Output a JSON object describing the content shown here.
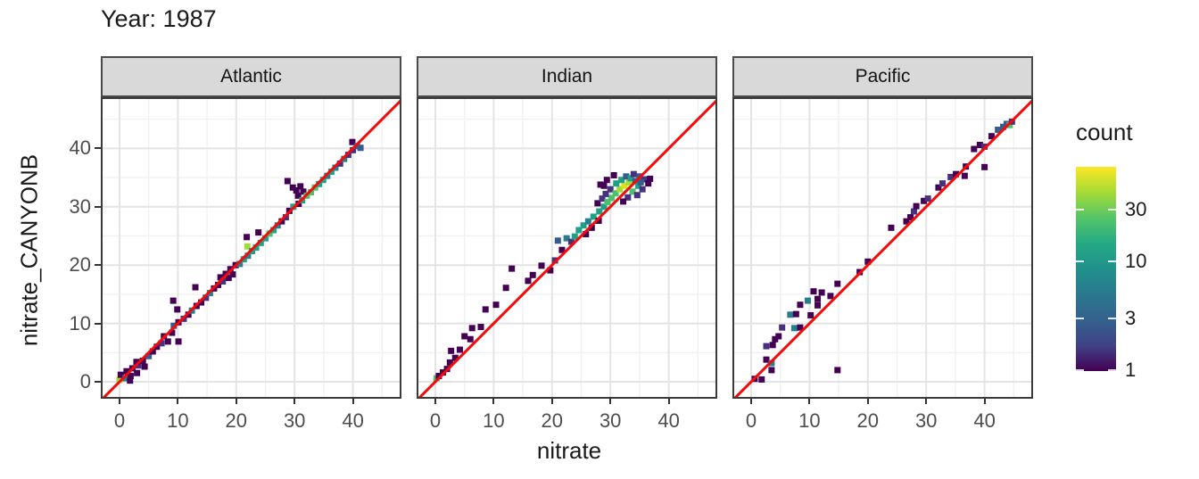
{
  "title": "Year: 1987",
  "axes": {
    "x_title": "nitrate",
    "y_title": "nitrate_CANYONB",
    "x_tick_labels": [
      "0",
      "10",
      "20",
      "30",
      "40"
    ],
    "y_tick_labels": [
      "0",
      "10",
      "20",
      "30",
      "40"
    ]
  },
  "legend": {
    "title": "count",
    "labels": [
      "30",
      "10",
      "3",
      "1"
    ],
    "label_values": [
      30,
      10,
      3,
      1
    ]
  },
  "colors": {
    "identity_line": "#F50A0A",
    "strip_bg": "#d9d9d9",
    "strip_border": "#4a4a4a",
    "panel_border": "#3a3a3a",
    "grid_major": "#e4e4e4",
    "grid_minor": "#f1f1f1",
    "tick_label": "#4d4d4d",
    "viridis_levels": {
      "c1": "#440154",
      "c2": "#46327e",
      "c3": "#365c8d",
      "c4": "#277f8e",
      "c5": "#1fa187",
      "c6": "#4ac16d",
      "c7": "#a0da39",
      "c8": "#d8e219"
    },
    "colorbar_gradient": [
      "#fde725",
      "#a5db36",
      "#54c568",
      "#24aa83",
      "#21918c",
      "#2a788e",
      "#34618d",
      "#414287",
      "#440154"
    ]
  },
  "chart_data": {
    "type": "heatmap",
    "subtype": "geom_bin2d faceted scatter of binned counts with y=x reference line",
    "title": "Year: 1987",
    "xlabel": "nitrate",
    "ylabel": "nitrate_CANYONB",
    "xlim": [
      -3.2,
      48.3
    ],
    "ylim": [
      -2.9,
      48.8
    ],
    "x_ticks": [
      0,
      10,
      20,
      30,
      40
    ],
    "y_ticks": [
      0,
      10,
      20,
      30,
      40
    ],
    "grid": {
      "major": [
        0,
        10,
        20,
        30,
        40
      ],
      "minor": [
        5,
        15,
        25,
        35,
        45
      ]
    },
    "identity_line": "y = x (red)",
    "legend_position": "right",
    "count_scale": {
      "type": "log",
      "legend_ticks": [
        1,
        3,
        10,
        30
      ],
      "max_approx": 70
    },
    "level_counts": {
      "c1": 1,
      "c2": 2,
      "c3": 3,
      "c4": 5,
      "c5": 8,
      "c6": 15,
      "c7": 30,
      "c8": 45
    },
    "facets": [
      {
        "name": "Atlantic",
        "bins": [
          [
            0,
            0.3,
            "c7"
          ],
          [
            0.2,
            1.2,
            "c1"
          ],
          [
            1,
            0.6,
            "c4"
          ],
          [
            1.2,
            1.8,
            "c1"
          ],
          [
            1.9,
            1,
            "c1"
          ],
          [
            2.2,
            2.3,
            "c1"
          ],
          [
            3,
            1.5,
            "c1"
          ],
          [
            3.2,
            2.8,
            "c2"
          ],
          [
            1.8,
            0.2,
            "c1"
          ],
          [
            2.9,
            3.4,
            "c1"
          ],
          [
            4,
            3.6,
            "c1"
          ],
          [
            4.3,
            2.6,
            "c1"
          ],
          [
            5,
            4.4,
            "c3"
          ],
          [
            5.7,
            5.2,
            "c1"
          ],
          [
            6.4,
            6,
            "c1"
          ],
          [
            7.2,
            6.6,
            "c2"
          ],
          [
            7.6,
            7.8,
            "c1"
          ],
          [
            8.3,
            6.9,
            "c1"
          ],
          [
            9,
            8.4,
            "c1"
          ],
          [
            9.3,
            9.6,
            "c3"
          ],
          [
            10.1,
            10.2,
            "c1"
          ],
          [
            9.2,
            13.9,
            "c1"
          ],
          [
            9.9,
            12.4,
            "c1"
          ],
          [
            10.1,
            6.9,
            "c1"
          ],
          [
            11,
            10.8,
            "c2"
          ],
          [
            11.8,
            11.5,
            "c1"
          ],
          [
            12.4,
            12.2,
            "c4"
          ],
          [
            13.2,
            13,
            "c1"
          ],
          [
            13,
            16.2,
            "c1"
          ],
          [
            14,
            13.6,
            "c1"
          ],
          [
            14.8,
            14.4,
            "c2"
          ],
          [
            15.5,
            15.2,
            "c4"
          ],
          [
            16.2,
            16,
            "c1"
          ],
          [
            16.9,
            16.6,
            "c1"
          ],
          [
            17.3,
            17.9,
            "c1"
          ],
          [
            17.7,
            17.2,
            "c2"
          ],
          [
            18.2,
            18.5,
            "c1"
          ],
          [
            18.7,
            17.8,
            "c1"
          ],
          [
            19,
            19.3,
            "c1"
          ],
          [
            19.4,
            18.4,
            "c1"
          ],
          [
            19.9,
            20,
            "c1"
          ],
          [
            20.6,
            20.2,
            "c4"
          ],
          [
            21.3,
            21,
            "c5"
          ],
          [
            22,
            21.6,
            "c4"
          ],
          [
            21.9,
            23.2,
            "c7"
          ],
          [
            22.7,
            22.4,
            "c5"
          ],
          [
            23.4,
            23,
            "c5"
          ],
          [
            24.2,
            23.8,
            "c5"
          ],
          [
            25,
            24.6,
            "c5"
          ],
          [
            25.7,
            25.4,
            "c6"
          ],
          [
            26.4,
            26,
            "c5"
          ],
          [
            27.1,
            26.8,
            "c4"
          ],
          [
            21.8,
            24.8,
            "c1"
          ],
          [
            23.8,
            25.6,
            "c1"
          ],
          [
            27.8,
            27.5,
            "c1"
          ],
          [
            28.5,
            28.2,
            "c2"
          ],
          [
            29.1,
            29.3,
            "c1"
          ],
          [
            29.8,
            30,
            "c5"
          ],
          [
            28.8,
            34.4,
            "c1"
          ],
          [
            29.7,
            33.3,
            "c1"
          ],
          [
            30.3,
            32.8,
            "c1"
          ],
          [
            31,
            33.5,
            "c1"
          ],
          [
            30.6,
            31.9,
            "c1"
          ],
          [
            31.5,
            32.6,
            "c1"
          ],
          [
            30.7,
            30.5,
            "c1"
          ],
          [
            31.3,
            31.1,
            "c5"
          ],
          [
            32.1,
            31.9,
            "c6"
          ],
          [
            32.8,
            32.5,
            "c6"
          ],
          [
            33.5,
            33.3,
            "c6"
          ],
          [
            34.2,
            33.9,
            "c5"
          ],
          [
            34.9,
            34.6,
            "c5"
          ],
          [
            35.6,
            35.3,
            "c4"
          ],
          [
            36.3,
            36,
            "c5"
          ],
          [
            37,
            36.7,
            "c4"
          ],
          [
            37.8,
            37.4,
            "c2"
          ],
          [
            38.5,
            38.2,
            "c4"
          ],
          [
            39.2,
            38.9,
            "c2"
          ],
          [
            40,
            39.7,
            "c2"
          ],
          [
            39.9,
            41.1,
            "c1"
          ],
          [
            40.7,
            40.4,
            "c3"
          ],
          [
            41.3,
            40.1,
            "c3"
          ]
        ]
      },
      {
        "name": "Indian",
        "bins": [
          [
            0.2,
            0.6,
            "c6"
          ],
          [
            0.6,
            1,
            "c1"
          ],
          [
            1.3,
            1.6,
            "c1"
          ],
          [
            2,
            2.2,
            "c1"
          ],
          [
            2.5,
            3.3,
            "c1"
          ],
          [
            2.7,
            5.3,
            "c1"
          ],
          [
            3.4,
            4.1,
            "c1"
          ],
          [
            4.2,
            5.5,
            "c1"
          ],
          [
            5,
            7.8,
            "c1"
          ],
          [
            6,
            7.3,
            "c1"
          ],
          [
            6.3,
            9.2,
            "c1"
          ],
          [
            7.8,
            9.4,
            "c1"
          ],
          [
            8.6,
            12.4,
            "c1"
          ],
          [
            10.4,
            13.2,
            "c1"
          ],
          [
            12.1,
            16.1,
            "c1"
          ],
          [
            13.1,
            19.4,
            "c1"
          ],
          [
            15.9,
            17.3,
            "c1"
          ],
          [
            16.7,
            18.3,
            "c1"
          ],
          [
            18.2,
            19.9,
            "c1"
          ],
          [
            19.7,
            19.1,
            "c1"
          ],
          [
            20.5,
            20.8,
            "c2"
          ],
          [
            21,
            24.2,
            "c3"
          ],
          [
            21.7,
            22.6,
            "c1"
          ],
          [
            22.5,
            24.6,
            "c4"
          ],
          [
            23.3,
            24,
            "c2"
          ],
          [
            23.9,
            24.9,
            "c5"
          ],
          [
            24.6,
            26,
            "c5"
          ],
          [
            25.4,
            26.8,
            "c5"
          ],
          [
            26.2,
            27.5,
            "c4"
          ],
          [
            27.1,
            28.3,
            "c5"
          ],
          [
            25.8,
            25.3,
            "c1"
          ],
          [
            26.8,
            26.4,
            "c1"
          ],
          [
            28,
            27.6,
            "c1"
          ],
          [
            28.1,
            29.2,
            "c5"
          ],
          [
            28.9,
            30,
            "c5"
          ],
          [
            27.8,
            30.6,
            "c1"
          ],
          [
            28.6,
            31.4,
            "c2"
          ],
          [
            29.5,
            30.8,
            "c6"
          ],
          [
            30.2,
            31.5,
            "c6"
          ],
          [
            29.2,
            32.2,
            "c2"
          ],
          [
            30,
            33,
            "c2"
          ],
          [
            30.9,
            32.3,
            "c6"
          ],
          [
            31.6,
            33,
            "c7"
          ],
          [
            32.4,
            33.6,
            "c8"
          ],
          [
            33.2,
            34.2,
            "c7"
          ],
          [
            31,
            34,
            "c5"
          ],
          [
            31.9,
            34.6,
            "c5"
          ],
          [
            32.7,
            35.2,
            "c3"
          ],
          [
            33.5,
            34.9,
            "c5"
          ],
          [
            34.3,
            34.4,
            "c3"
          ],
          [
            34,
            35.6,
            "c2"
          ],
          [
            35,
            35.2,
            "c3"
          ],
          [
            35.8,
            34.7,
            "c2"
          ],
          [
            36.5,
            34,
            "c1"
          ],
          [
            34.8,
            33.6,
            "c5"
          ],
          [
            35.5,
            33,
            "c2"
          ],
          [
            33.8,
            32.6,
            "c6"
          ],
          [
            34.6,
            32,
            "c2"
          ],
          [
            33,
            31.6,
            "c2"
          ],
          [
            32.2,
            30.9,
            "c1"
          ],
          [
            35.2,
            34.2,
            "c3"
          ],
          [
            36.8,
            34.8,
            "c1"
          ],
          [
            30.6,
            35.4,
            "c1"
          ],
          [
            29.4,
            34.6,
            "c1"
          ],
          [
            28.3,
            33.8,
            "c1"
          ],
          [
            28.9,
            33.6,
            "c1"
          ]
        ]
      },
      {
        "name": "Pacific",
        "bins": [
          [
            0.6,
            0.5,
            "c1"
          ],
          [
            1.8,
            0.4,
            "c1"
          ],
          [
            2.6,
            3.8,
            "c1"
          ],
          [
            3.5,
            3.2,
            "c4"
          ],
          [
            3.5,
            2,
            "c1"
          ],
          [
            2.6,
            6.1,
            "c2"
          ],
          [
            3.7,
            6.3,
            "c1"
          ],
          [
            4.1,
            7.3,
            "c1"
          ],
          [
            4.7,
            7.8,
            "c1"
          ],
          [
            5.3,
            9.3,
            "c2"
          ],
          [
            6.7,
            11.5,
            "c4"
          ],
          [
            7.7,
            11.6,
            "c1"
          ],
          [
            7.4,
            9.2,
            "c4"
          ],
          [
            8.4,
            9.3,
            "c1"
          ],
          [
            8.4,
            13.2,
            "c1"
          ],
          [
            9.7,
            13.9,
            "c4"
          ],
          [
            10.2,
            11.4,
            "c1"
          ],
          [
            10.7,
            15.5,
            "c1"
          ],
          [
            12.1,
            15.3,
            "c1"
          ],
          [
            11.4,
            14.2,
            "c1"
          ],
          [
            11.4,
            13.1,
            "c1"
          ],
          [
            13.6,
            14.7,
            "c1"
          ],
          [
            14.8,
            16.8,
            "c1"
          ],
          [
            14.8,
            2,
            "c1"
          ],
          [
            18.6,
            18.8,
            "c1"
          ],
          [
            20,
            20.6,
            "c1"
          ],
          [
            24,
            26.4,
            "c1"
          ],
          [
            26.6,
            27.5,
            "c1"
          ],
          [
            27.3,
            28.2,
            "c1"
          ],
          [
            27.9,
            29.2,
            "c2"
          ],
          [
            28.3,
            30.1,
            "c1"
          ],
          [
            29.6,
            31,
            "c1"
          ],
          [
            30.3,
            31.4,
            "c2"
          ],
          [
            32.1,
            33.3,
            "c1"
          ],
          [
            32.8,
            34,
            "c2"
          ],
          [
            34.2,
            35.1,
            "c2"
          ],
          [
            35.1,
            35.6,
            "c1"
          ],
          [
            36.6,
            35.3,
            "c1"
          ],
          [
            36.8,
            36.9,
            "c1"
          ],
          [
            40,
            36.8,
            "c1"
          ],
          [
            38.2,
            39.9,
            "c1"
          ],
          [
            39.2,
            40.6,
            "c1"
          ],
          [
            40,
            40.3,
            "c2"
          ],
          [
            41.2,
            42.1,
            "c1"
          ],
          [
            42.3,
            43.2,
            "c3"
          ],
          [
            43.2,
            43.7,
            "c3"
          ],
          [
            43.8,
            44.2,
            "c3"
          ],
          [
            44.3,
            44,
            "c6"
          ],
          [
            44.7,
            44.6,
            "c2"
          ]
        ]
      }
    ]
  }
}
